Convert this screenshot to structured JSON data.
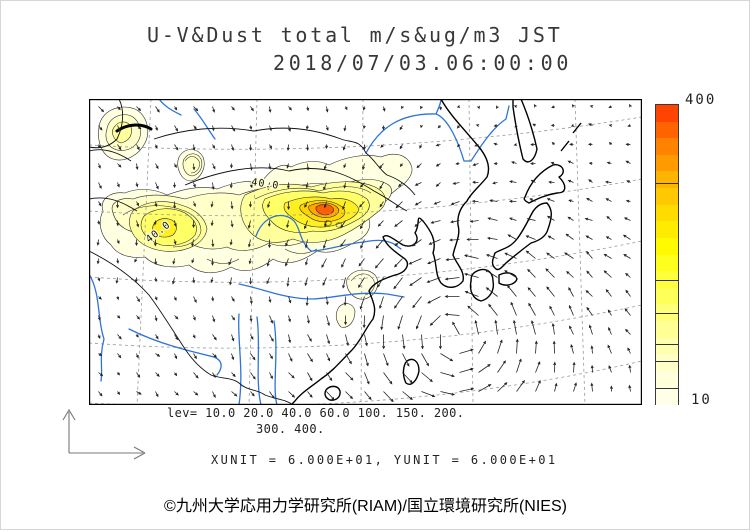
{
  "chart_data": {
    "type": "heatmap",
    "subtype": "filled-contour dust concentration map with wind vector overlay over East Asia",
    "title": "U-V&Dust total m/s&ug/m3 JST",
    "datetime": "2018/07/03.06:00:00",
    "shading_variable": "Dust total (ug/m3)",
    "vector_variable": "U-V wind (m/s)",
    "contour_levels": [
      10,
      20,
      40,
      60,
      100,
      150,
      200,
      300,
      400
    ],
    "levels_line1": "lev= 10.0 20.0 40.0 60.0 100. 150. 200.",
    "levels_line2": "300. 400.",
    "units_line": "XUNIT = 6.000E+01, YUNIT = 6.000E+01",
    "xunit": "6.000E+01",
    "yunit": "6.000E+01",
    "colorbar": {
      "min": 10,
      "max": 400,
      "min_label": "10",
      "max_label": "400",
      "colors_bottom_to_top": [
        "#FFFFE8",
        "#FFFFDC",
        "#FFFFC8",
        "#FFFFB0",
        "#FFFF96",
        "#FFFF78",
        "#FFFF5A",
        "#FFFF3C",
        "#FFFF1E",
        "#FFFA00",
        "#FFEB00",
        "#FFDC00",
        "#FFC800",
        "#FFB400",
        "#FF9B00",
        "#FF8200",
        "#FF6400",
        "#FF4300"
      ]
    },
    "fill_colors": [
      "#FFFFE2",
      "#FFFFC8",
      "#FFFF9C",
      "#FFFF66",
      "#FFEE22",
      "#FFD400",
      "#FFA800",
      "#FF5E00"
    ],
    "contour_labels": [
      "40.0",
      "40.0"
    ],
    "line_colors": {
      "coast": "#000000",
      "river": "#2E74D8",
      "graticule": "#999999",
      "vector": "#222222"
    }
  },
  "footer": {
    "credit": "©九州大学応用力学研究所(RIAM)/国立環境研究所(NIES)"
  }
}
